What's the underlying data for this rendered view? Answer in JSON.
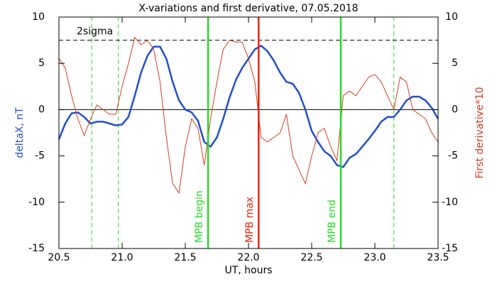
{
  "chart_data": {
    "type": "line",
    "title": "X-variations and first derivative, 07.05.2018",
    "x_label": "UT, hours",
    "y_label": "deltaX, nT",
    "y2_label": "First derivative*10",
    "x": [
      20.5,
      20.55,
      20.6,
      20.65,
      20.7,
      20.75,
      20.8,
      20.85,
      20.9,
      20.95,
      21.0,
      21.05,
      21.1,
      21.15,
      21.2,
      21.25,
      21.3,
      21.35,
      21.4,
      21.45,
      21.5,
      21.55,
      21.6,
      21.65,
      21.7,
      21.75,
      21.8,
      21.85,
      21.9,
      21.95,
      22.0,
      22.05,
      22.1,
      22.15,
      22.2,
      22.25,
      22.3,
      22.35,
      22.4,
      22.45,
      22.5,
      22.55,
      22.6,
      22.65,
      22.7,
      22.75,
      22.8,
      22.85,
      22.9,
      22.95,
      23.0,
      23.05,
      23.1,
      23.15,
      23.2,
      23.25,
      23.3,
      23.35,
      23.4,
      23.45,
      23.5
    ],
    "series": [
      {
        "name": "deltaX, nT",
        "color": "#1f4fd0",
        "axis": "y",
        "values": [
          -3.2,
          -1.5,
          -0.4,
          -0.3,
          -0.8,
          -1.5,
          -1.3,
          -1.3,
          -1.5,
          -1.7,
          -1.6,
          -0.8,
          1.5,
          4.0,
          5.8,
          6.8,
          6.8,
          5.5,
          3.0,
          1.0,
          0,
          -0.3,
          -1.2,
          -3.5,
          -4.0,
          -3.0,
          -1.0,
          1.3,
          3.2,
          4.5,
          5.5,
          6.5,
          6.9,
          6.3,
          5.3,
          4.0,
          3.0,
          2.8,
          1.8,
          0,
          -2.3,
          -3.5,
          -4.5,
          -5.0,
          -6.0,
          -6.2,
          -5.2,
          -4.8,
          -4.0,
          -3.2,
          -2.3,
          -1.3,
          -0.8,
          -0.8,
          0,
          1.0,
          1.4,
          1.4,
          1.0,
          0.2,
          -1.0
        ]
      },
      {
        "name": "First derivative*10",
        "color": "#d83a1c",
        "axis": "y2",
        "values": [
          5.5,
          4.5,
          1.5,
          -1,
          -2.8,
          -1,
          0.5,
          0,
          -0.5,
          -0.5,
          2.5,
          5,
          7.8,
          7,
          7.5,
          6.5,
          3,
          -3,
          -8,
          -9,
          -4,
          -1,
          -2,
          -6,
          -1,
          3,
          6.5,
          7.5,
          7.3,
          7.3,
          5.5,
          3,
          -3,
          -3.5,
          -3,
          -2.5,
          -0.5,
          -5,
          -6.5,
          -8,
          -5,
          -2.5,
          -2,
          -4,
          -5.5,
          1.5,
          2,
          1.5,
          2.5,
          3.5,
          3.8,
          3,
          1.5,
          0,
          3.5,
          3,
          0,
          -0.5,
          -1,
          -2.5,
          -3.5
        ]
      }
    ],
    "xlim": [
      20.5,
      23.5
    ],
    "xticks": [
      {
        "value": 20.5,
        "label": "20.5"
      },
      {
        "value": 21.0,
        "label": "21.0"
      },
      {
        "value": 21.5,
        "label": "21.5"
      },
      {
        "value": 22.0,
        "label": "22.0"
      },
      {
        "value": 22.5,
        "label": "22.5"
      },
      {
        "value": 23.0,
        "label": "23.0"
      },
      {
        "value": 23.5,
        "label": "23.5"
      }
    ],
    "ylim": [
      -15,
      10
    ],
    "yticks": [
      10,
      5,
      0,
      -5,
      -10,
      -15
    ],
    "y2lim": [
      -15,
      10
    ],
    "y2ticks": [
      10,
      5,
      0,
      -5,
      -10,
      -15
    ],
    "hline": {
      "y": 7.5,
      "label": "2sigma"
    },
    "vlines": [
      {
        "x": 21.68,
        "color": "#22dd22",
        "label": "MPB begin"
      },
      {
        "x": 22.08,
        "color": "#ee2200",
        "label": "MPB max"
      },
      {
        "x": 22.73,
        "color": "#22dd22",
        "label": "MPB end"
      }
    ],
    "dashed_vlines": [
      20.76,
      20.97,
      23.15
    ],
    "dashed_color": "#22dd22"
  }
}
